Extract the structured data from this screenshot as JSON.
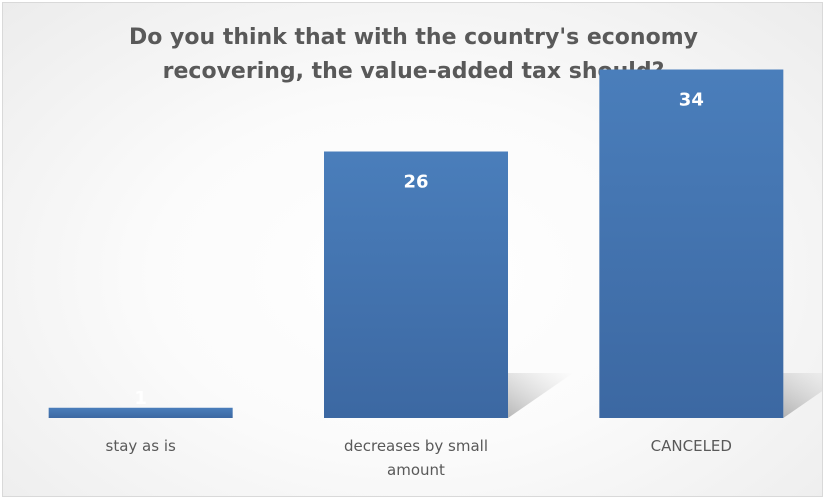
{
  "chart_data": {
    "type": "bar",
    "title": "Do you think that with the country's economy recovering, the value-added tax should?",
    "categories": [
      "stay as is",
      "decreases by small amount",
      "CANCELED"
    ],
    "values": [
      1,
      26,
      34
    ],
    "ylim": [
      0,
      40
    ],
    "grid": false,
    "legend": "none",
    "bar_color": "#4a7ebb",
    "bar_color_dark": "#3c68a2",
    "label_color": "#ffffff",
    "text_color": "#595959"
  }
}
